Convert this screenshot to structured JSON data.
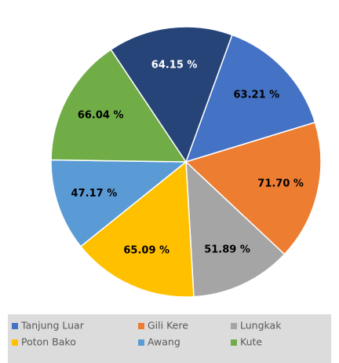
{
  "chart_data": {
    "type": "pie",
    "categories": [
      "Tanjung Luar",
      "Gili Kere",
      "Lungkak",
      "Poton Bako",
      "Awang",
      "Kute",
      null
    ],
    "values": [
      63.21,
      71.7,
      51.89,
      65.09,
      47.17,
      66.04,
      64.15
    ],
    "value_labels": [
      "63.21 %",
      "71.70 %",
      "51.89 %",
      "65.09 %",
      "47.17 %",
      "66.04 %",
      "64.15 %"
    ],
    "colors": [
      "#4472c4",
      "#ed7d31",
      "#a5a5a5",
      "#ffc000",
      "#5b9bd5",
      "#70ad47",
      "#264478"
    ],
    "legend": "bottom"
  }
}
